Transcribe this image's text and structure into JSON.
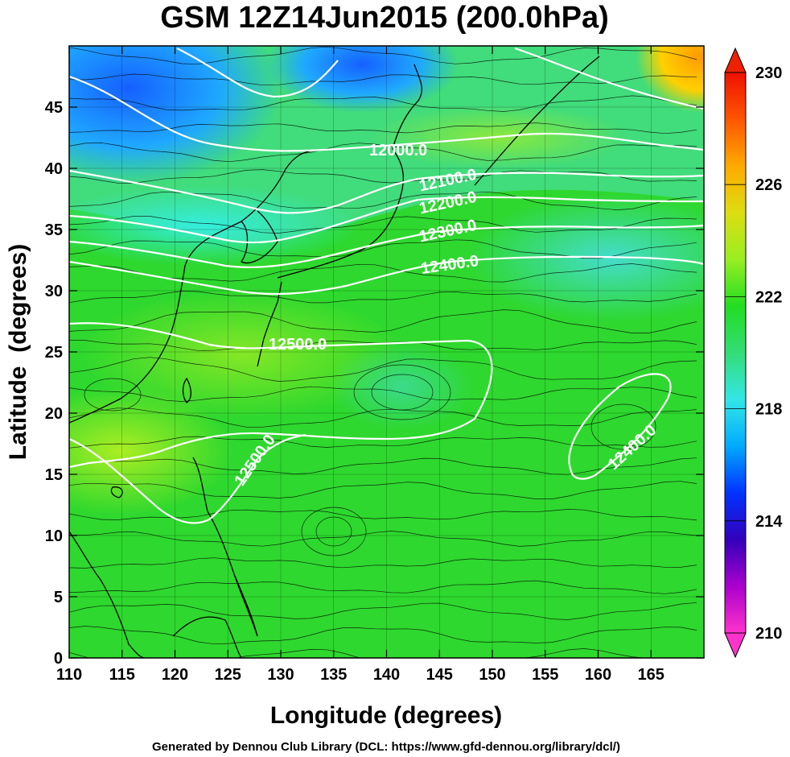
{
  "chart_data": {
    "type": "heatmap",
    "title": "GSM 12Z14Jun2015 (200.0hPa)",
    "xlabel": "Longitude (degrees)",
    "ylabel": "Latitude  (degrees)",
    "xlim": [
      110,
      170
    ],
    "ylim": [
      0,
      50
    ],
    "xticks": [
      110,
      115,
      120,
      125,
      130,
      135,
      140,
      145,
      150,
      155,
      160,
      165
    ],
    "yticks": [
      0,
      5,
      10,
      15,
      20,
      25,
      30,
      35,
      40,
      45
    ],
    "grid": true,
    "colorbar": {
      "ticks": [
        210,
        214,
        218,
        222,
        226,
        230
      ],
      "min": 210,
      "max": 230,
      "colors": [
        "#ff33cc",
        "#aa00cc",
        "#3300bb",
        "#0033ff",
        "#00aaff",
        "#33e6e6",
        "#33dd77",
        "#22dd22",
        "#99ee22",
        "#dddd11",
        "#ffaa00",
        "#ff5500",
        "#ee1100"
      ]
    },
    "contours": [
      {
        "label": "12000.0",
        "value": 12000
      },
      {
        "label": "12100.0",
        "value": 12100
      },
      {
        "label": "12200.0",
        "value": 12200
      },
      {
        "label": "12300.0",
        "value": 12300
      },
      {
        "label": "12400.0",
        "value": 12400
      },
      {
        "label": "12500.0",
        "value": 12500
      },
      {
        "label": "12500.0",
        "value": 12500
      },
      {
        "label": "12400.0",
        "value": 12400
      }
    ]
  },
  "footer": "Generated by Dennou Club Library (DCL: https://www.gfd-dennou.org/library/dcl/)"
}
